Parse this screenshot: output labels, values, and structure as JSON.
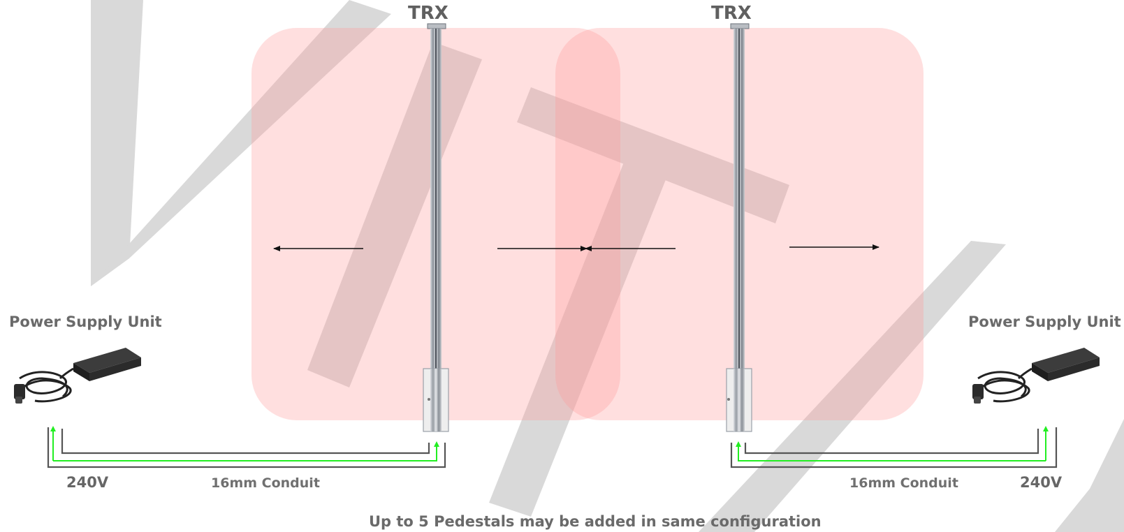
{
  "pedestals": [
    {
      "label": "TRX"
    },
    {
      "label": "TRX"
    }
  ],
  "power_supply_units": [
    {
      "label": "Power Supply Unit",
      "voltage": "240V",
      "conduit": "16mm Conduit"
    },
    {
      "label": "Power Supply Unit",
      "voltage": "240V",
      "conduit": "16mm Conduit"
    }
  ],
  "footer_note": "Up to 5 Pedestals may be added in same configuration",
  "colors": {
    "detection_zone": "#ff9a9a",
    "pedestal": "#9aa0a8",
    "cable": "#555555",
    "power_line": "#22ee22",
    "watermark": "#d6d6d6",
    "arrow": "#111111"
  },
  "icons": {
    "pedestal": "pedestal-antenna-icon",
    "psu": "power-adapter-icon"
  }
}
